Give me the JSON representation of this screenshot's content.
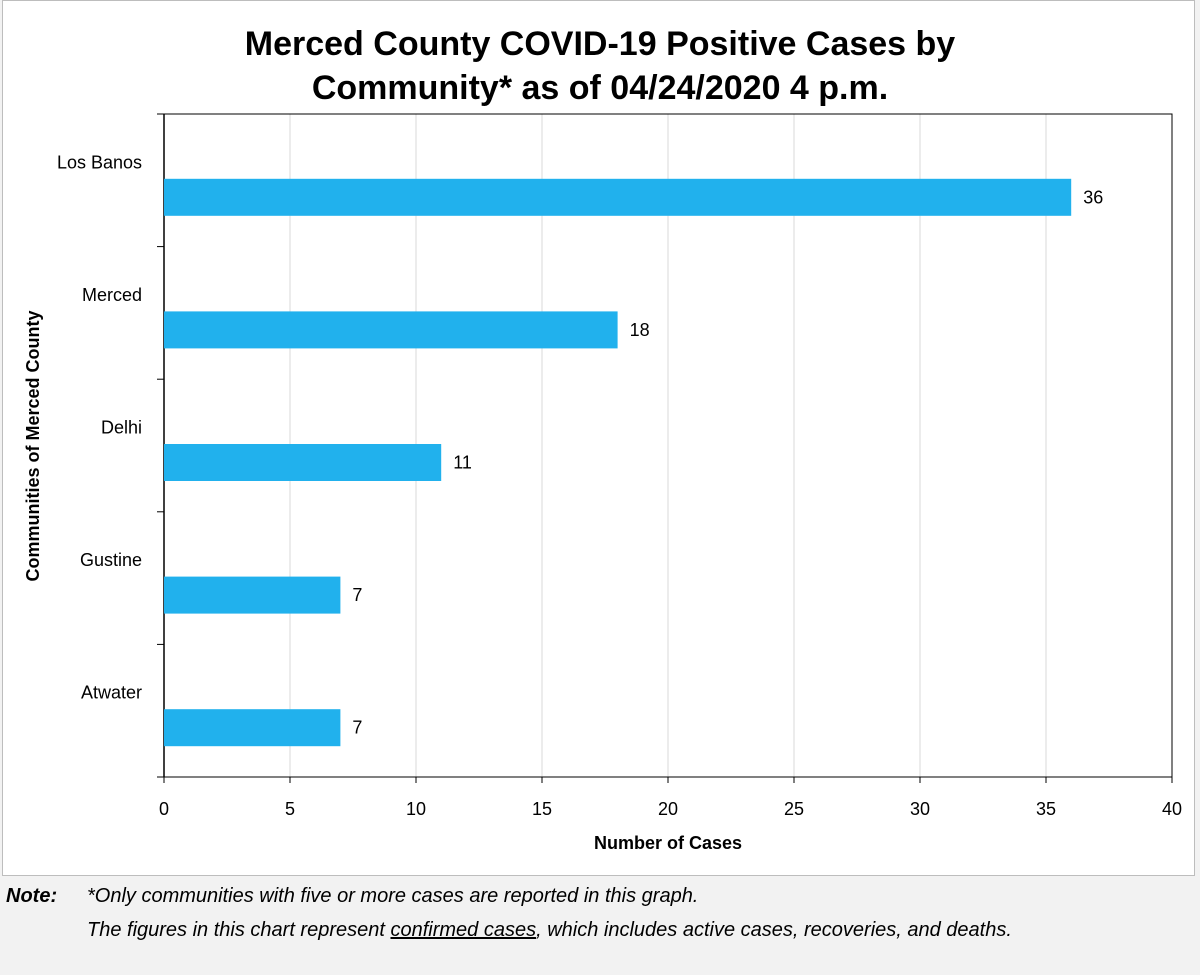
{
  "chart_data": {
    "type": "bar",
    "orientation": "horizontal",
    "title_line1": "Merced County COVID-19 Positive Cases by",
    "title_line2": "Community* as of 04/24/2020 4 p.m.",
    "xlabel": "Number of Cases",
    "ylabel": "Communities of Merced County",
    "categories": [
      "Los Banos",
      "Merced",
      "Delhi",
      "Gustine",
      "Atwater"
    ],
    "values": [
      36,
      18,
      11,
      7,
      7
    ],
    "xlim": [
      0,
      40
    ],
    "xticks": [
      0,
      5,
      10,
      15,
      20,
      25,
      30,
      35,
      40
    ],
    "grid": "vertical",
    "bar_color": "#21b1ed",
    "data_labels": true
  },
  "note": {
    "label": "Note:",
    "line1": "*Only communities with five or more cases are reported in this graph.",
    "line2_pre": "The figures in this chart represent ",
    "line2_underlined": "confirmed cases",
    "line2_post": ", which includes active cases, recoveries, and deaths."
  }
}
